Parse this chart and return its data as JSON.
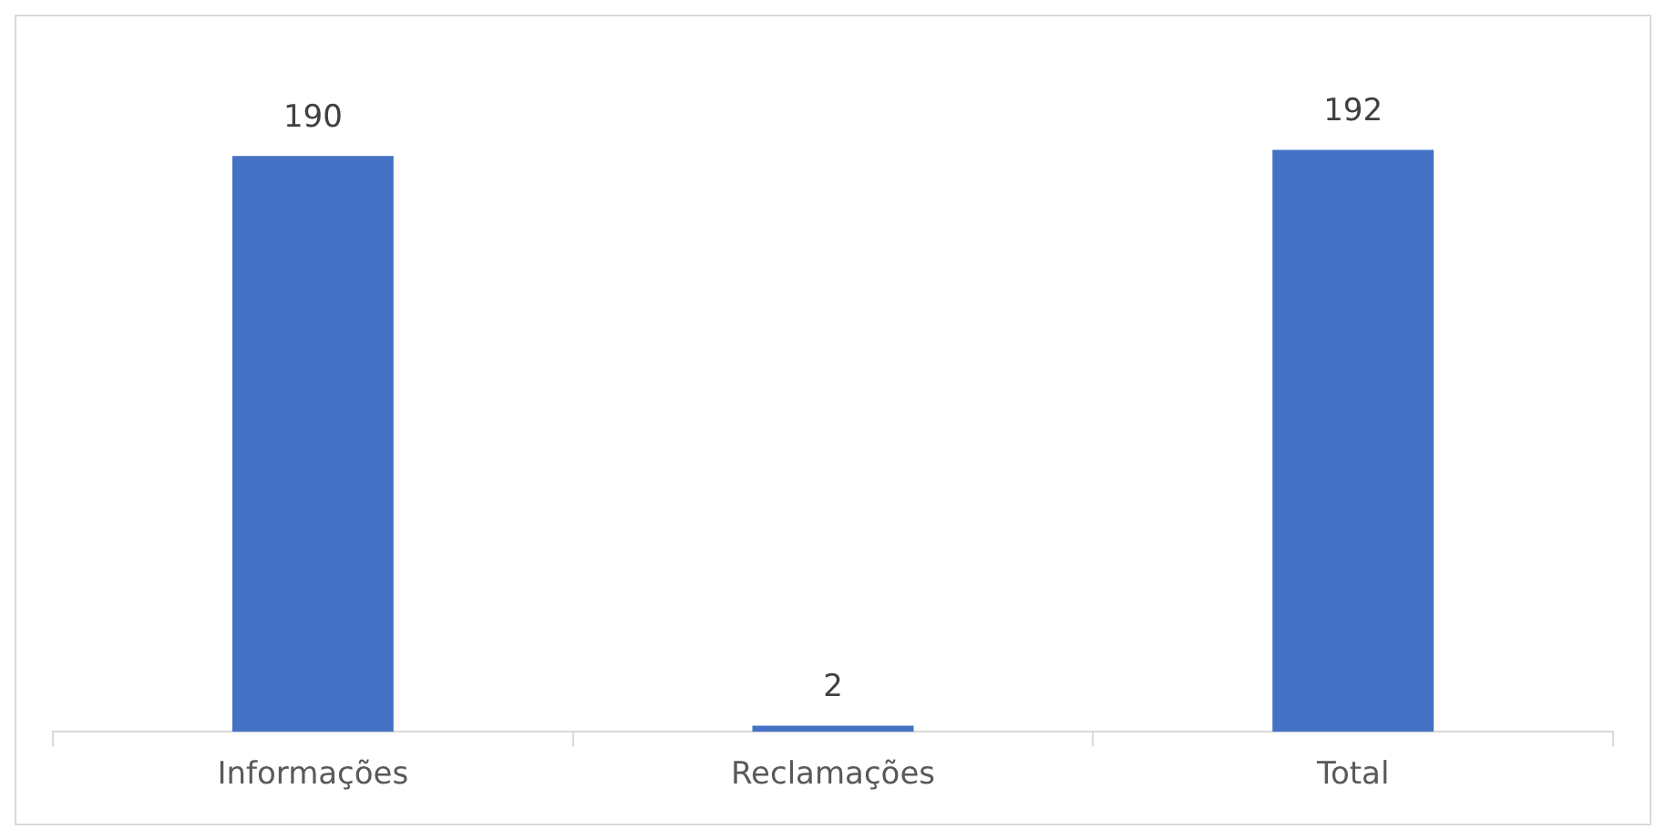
{
  "chart_data": {
    "type": "bar",
    "categories": [
      "Informações",
      "Reclamações",
      "Total"
    ],
    "values": [
      190,
      2,
      192
    ],
    "color": "#4472c4",
    "data_labels": true,
    "grid": false,
    "legend": false
  }
}
